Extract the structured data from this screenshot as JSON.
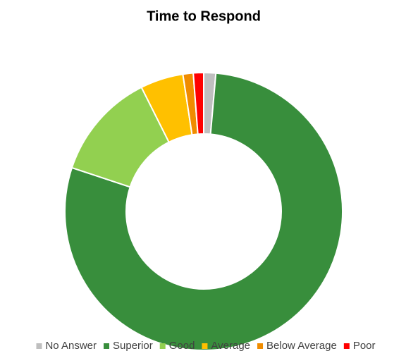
{
  "chart_data": {
    "type": "donut",
    "title": "Time to Respond",
    "categories": [
      "No Answer",
      "Superior",
      "Good",
      "Average",
      "Below Average",
      "Poor"
    ],
    "values": [
      1.4,
      78.7,
      12.5,
      5,
      1.2,
      1.2
    ],
    "colors": [
      "#bfbfbf",
      "#388e3c",
      "#92d050",
      "#ffc000",
      "#f08c00",
      "#ff0000"
    ],
    "legend": "bottom"
  }
}
